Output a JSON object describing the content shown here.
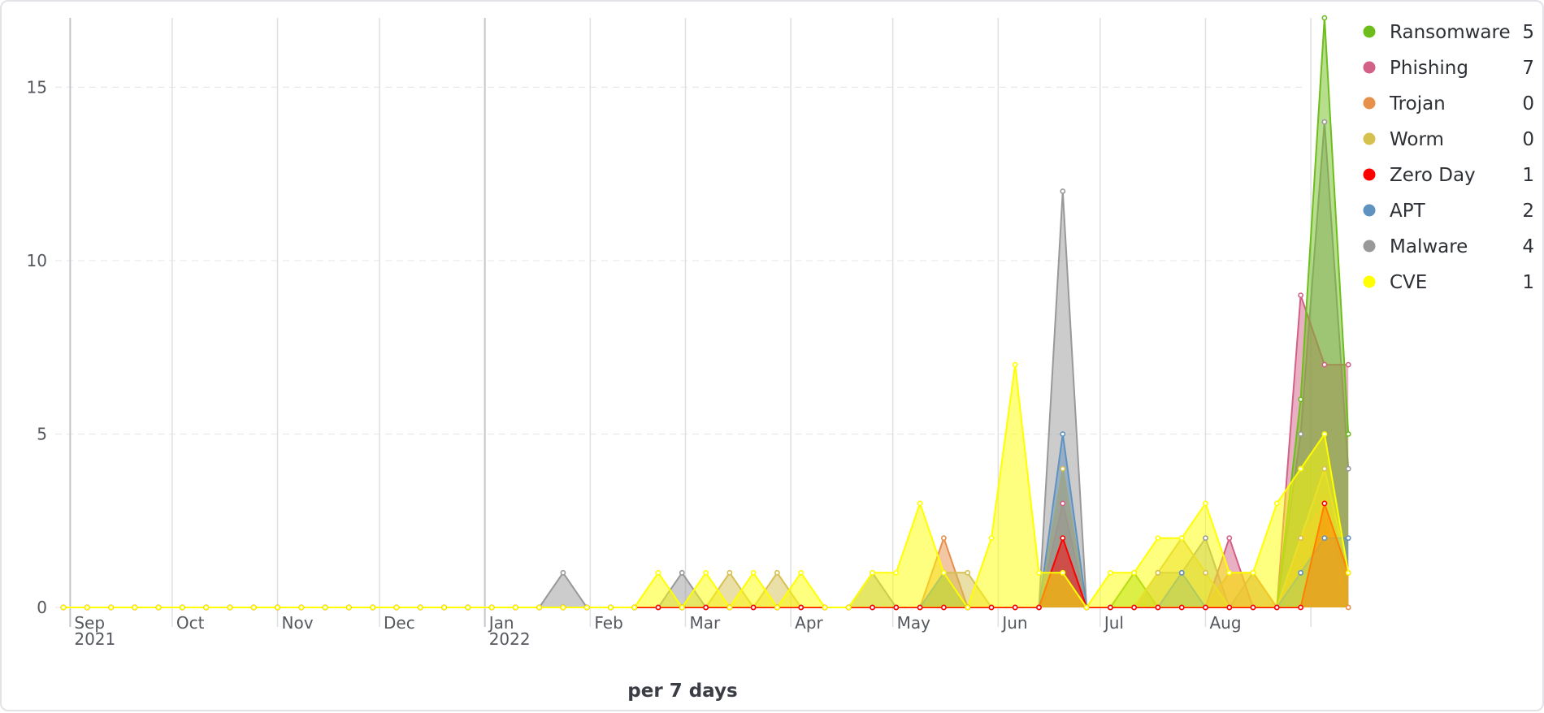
{
  "chart_data": {
    "type": "area",
    "xlabel": "per 7 days",
    "ylabel": "",
    "ylim": [
      0,
      17
    ],
    "y_ticks": [
      0,
      5,
      10,
      15
    ],
    "grid": "horizontal dashed, vertical at month starts",
    "legend_position": "right",
    "x_start": "2021-08-30",
    "x_step_days": 7,
    "month_ticks": [
      {
        "date": "2021-09-01",
        "label": "Sep",
        "sublabel": "2021"
      },
      {
        "date": "2021-10-01",
        "label": "Oct",
        "sublabel": ""
      },
      {
        "date": "2021-11-01",
        "label": "Nov",
        "sublabel": ""
      },
      {
        "date": "2021-12-01",
        "label": "Dec",
        "sublabel": ""
      },
      {
        "date": "2022-01-01",
        "label": "Jan",
        "sublabel": "2022"
      },
      {
        "date": "2022-02-01",
        "label": "Feb",
        "sublabel": ""
      },
      {
        "date": "2022-03-01",
        "label": "Mar",
        "sublabel": ""
      },
      {
        "date": "2022-04-01",
        "label": "Apr",
        "sublabel": ""
      },
      {
        "date": "2022-05-01",
        "label": "May",
        "sublabel": ""
      },
      {
        "date": "2022-06-01",
        "label": "Jun",
        "sublabel": ""
      },
      {
        "date": "2022-07-01",
        "label": "Jul",
        "sublabel": ""
      },
      {
        "date": "2022-08-01",
        "label": "Aug",
        "sublabel": ""
      },
      {
        "date": "2022-09-01",
        "label": "",
        "sublabel": ""
      }
    ],
    "series": [
      {
        "name": "Malware",
        "count": "4",
        "color": "#999999",
        "values": [
          0,
          0,
          0,
          0,
          0,
          0,
          0,
          0,
          0,
          0,
          0,
          0,
          0,
          0,
          0,
          0,
          0,
          0,
          0,
          0,
          0,
          1,
          0,
          0,
          0,
          0,
          1,
          0,
          0,
          0,
          0,
          0,
          0,
          0,
          1,
          0,
          0,
          1,
          0,
          0,
          0,
          0,
          12,
          0,
          0,
          0,
          1,
          1,
          2,
          0,
          1,
          0,
          5,
          14,
          4
        ]
      },
      {
        "name": "Phishing",
        "count": "7",
        "color": "#d36086",
        "values": [
          0,
          0,
          0,
          0,
          0,
          0,
          0,
          0,
          0,
          0,
          0,
          0,
          0,
          0,
          0,
          0,
          0,
          0,
          0,
          0,
          0,
          0,
          0,
          0,
          0,
          0,
          0,
          0,
          0,
          0,
          0,
          0,
          0,
          0,
          0,
          0,
          0,
          0,
          0,
          0,
          0,
          0,
          3,
          0,
          0,
          0,
          0,
          0,
          0,
          2,
          0,
          0,
          9,
          7,
          7
        ]
      },
      {
        "name": "Ransomware",
        "count": "5",
        "color": "#6dbd1c",
        "values": [
          0,
          0,
          0,
          0,
          0,
          0,
          0,
          0,
          0,
          0,
          0,
          0,
          0,
          0,
          0,
          0,
          0,
          0,
          0,
          0,
          0,
          0,
          0,
          0,
          0,
          0,
          0,
          0,
          0,
          0,
          0,
          0,
          0,
          0,
          0,
          0,
          0,
          0,
          0,
          0,
          0,
          0,
          1,
          0,
          0,
          1,
          0,
          0,
          0,
          0,
          0,
          0,
          6,
          17,
          5
        ]
      },
      {
        "name": "Trojan",
        "count": "0",
        "color": "#e7904a",
        "values": [
          0,
          0,
          0,
          0,
          0,
          0,
          0,
          0,
          0,
          0,
          0,
          0,
          0,
          0,
          0,
          0,
          0,
          0,
          0,
          0,
          0,
          0,
          0,
          0,
          0,
          0,
          0,
          0,
          0,
          0,
          0,
          0,
          0,
          0,
          0,
          0,
          0,
          2,
          0,
          0,
          0,
          0,
          4,
          0,
          0,
          0,
          0,
          0,
          0,
          1,
          1,
          0,
          2,
          3,
          0
        ]
      },
      {
        "name": "Worm",
        "count": "0",
        "color": "#d6c04f",
        "values": [
          0,
          0,
          0,
          0,
          0,
          0,
          0,
          0,
          0,
          0,
          0,
          0,
          0,
          0,
          0,
          0,
          0,
          0,
          0,
          0,
          0,
          0,
          0,
          0,
          0,
          0,
          0,
          0,
          1,
          0,
          1,
          0,
          0,
          0,
          0,
          0,
          0,
          1,
          1,
          0,
          0,
          0,
          4,
          0,
          0,
          0,
          1,
          2,
          1,
          0,
          0,
          0,
          2,
          4,
          1
        ]
      },
      {
        "name": "APT",
        "count": "2",
        "color": "#6092c0",
        "values": [
          0,
          0,
          0,
          0,
          0,
          0,
          0,
          0,
          0,
          0,
          0,
          0,
          0,
          0,
          0,
          0,
          0,
          0,
          0,
          0,
          0,
          0,
          0,
          0,
          0,
          0,
          0,
          0,
          0,
          0,
          0,
          0,
          0,
          0,
          0,
          0,
          0,
          1,
          0,
          0,
          0,
          0,
          5,
          0,
          0,
          0,
          0,
          1,
          0,
          0,
          0,
          0,
          1,
          2,
          2
        ]
      },
      {
        "name": "Zero Day",
        "count": "1",
        "color": "#ff0000",
        "values": [
          0,
          0,
          0,
          0,
          0,
          0,
          0,
          0,
          0,
          0,
          0,
          0,
          0,
          0,
          0,
          0,
          0,
          0,
          0,
          0,
          0,
          0,
          0,
          0,
          0,
          0,
          0,
          0,
          0,
          0,
          0,
          0,
          0,
          0,
          0,
          0,
          0,
          0,
          0,
          0,
          0,
          0,
          2,
          0,
          0,
          0,
          0,
          0,
          0,
          0,
          0,
          0,
          0,
          3,
          1
        ]
      },
      {
        "name": "CVE",
        "count": "1",
        "color": "#ffff00",
        "values": [
          0,
          0,
          0,
          0,
          0,
          0,
          0,
          0,
          0,
          0,
          0,
          0,
          0,
          0,
          0,
          0,
          0,
          0,
          0,
          0,
          0,
          0,
          0,
          0,
          0,
          1,
          0,
          1,
          0,
          1,
          0,
          1,
          0,
          0,
          1,
          1,
          3,
          1,
          0,
          2,
          7,
          1,
          1,
          0,
          1,
          1,
          2,
          2,
          3,
          1,
          1,
          3,
          4,
          5,
          1
        ]
      }
    ],
    "legend_order": [
      "Ransomware",
      "Phishing",
      "Trojan",
      "Worm",
      "Zero Day",
      "APT",
      "Malware",
      "CVE"
    ]
  }
}
